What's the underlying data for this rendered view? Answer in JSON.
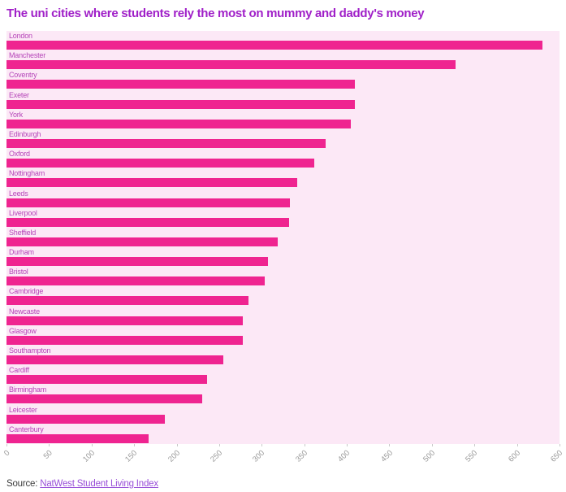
{
  "header": {
    "title": "The uni cities where students rely the most on mummy and daddy's money",
    "title_color": "#a020c8"
  },
  "chart_data": {
    "type": "bar",
    "orientation": "horizontal",
    "title": "The uni cities where students rely the most on mummy and daddy's money",
    "categories": [
      "London",
      "Manchester",
      "Coventry",
      "Exeter",
      "York",
      "Edinburgh",
      "Oxford",
      "Nottingham",
      "Leeds",
      "Liverpool",
      "Sheffield",
      "Durham",
      "Bristol",
      "Cambridge",
      "Newcaste",
      "Glasgow",
      "Southampton",
      "Cardiff",
      "Birmingham",
      "Leicester",
      "Canterbury"
    ],
    "values": [
      630,
      528,
      409,
      409,
      405,
      375,
      362,
      342,
      333,
      332,
      319,
      307,
      304,
      284,
      278,
      278,
      255,
      236,
      230,
      186,
      167
    ],
    "xlabel": "",
    "ylabel": "",
    "xlim": [
      0,
      650
    ],
    "x_ticks": [
      0,
      50,
      100,
      150,
      200,
      250,
      300,
      350,
      400,
      450,
      500,
      550,
      600,
      650
    ],
    "grid": false,
    "legend": false,
    "colors": {
      "bar": "#ef2490",
      "plot_background": "#fce8f6",
      "category_label": "#b544b8",
      "tick_label": "#9a9a9a"
    }
  },
  "source": {
    "prefix": "Source: ",
    "link_text": "NatWest Student Living Index",
    "link_color": "#9950d8"
  }
}
